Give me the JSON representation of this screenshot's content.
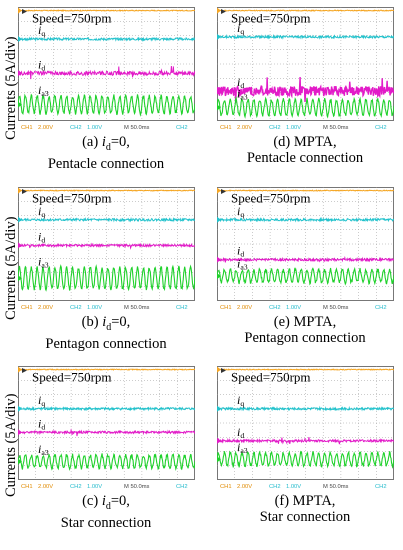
{
  "y_axis_label": "Currents (5A/div)",
  "colors": {
    "speed": "#F5A623",
    "iq": "#22C2CC",
    "id": "#E21BC8",
    "ia": "#1FD12B",
    "grid": "#9A9A9A",
    "status_left": "#E08A00",
    "status_mid": "#22BBCC",
    "status_right": "#22BBCC"
  },
  "panels": [
    {
      "id": "a",
      "speed_label": "Speed=750rpm",
      "iq_label": "iq",
      "id_label": "id",
      "ia_label": "ia3",
      "status": {
        "ch1": "CH1",
        "v1": "2.00V",
        "ch2": "CH2",
        "v2": "1.00V",
        "time": "M 50.0ms",
        "right": "CH2"
      },
      "caption_prefix": "(a) ",
      "caption_var": "i",
      "caption_sub": "d",
      "caption_rest": "=0,",
      "caption_line2": "Pentacle connection"
    },
    {
      "id": "d",
      "speed_label": "Speed=750rpm",
      "iq_label": "iq",
      "id_label": "id",
      "ia_label": "ia3",
      "status": {
        "ch1": "CH1",
        "v1": "2.00V",
        "ch2": "CH2",
        "v2": "1.00V",
        "time": "M 50.0ms",
        "right": "CH2"
      },
      "caption_line1": "(d) MPTA,",
      "caption_line2": "Pentacle connection"
    },
    {
      "id": "b",
      "speed_label": "Speed=750rpm",
      "iq_label": "iq",
      "id_label": "id",
      "ia_label": "ia3",
      "status": {
        "ch1": "CH1",
        "v1": "2.00V",
        "ch2": "CH2",
        "v2": "1.00V",
        "time": "M 50.0ms",
        "right": "CH2"
      },
      "caption_prefix": "(b) ",
      "caption_var": "i",
      "caption_sub": "d",
      "caption_rest": "=0,",
      "caption_line2": "Pentagon connection"
    },
    {
      "id": "e",
      "speed_label": "Speed=750rpm",
      "iq_label": "iq",
      "id_label": "id",
      "ia_label": "ia3",
      "status": {
        "ch1": "CH1",
        "v1": "2.00V",
        "ch2": "CH2",
        "v2": "1.00V",
        "time": "M 50.0ms",
        "right": "CH2"
      },
      "caption_line1": "(e) MPTA,",
      "caption_line2": "Pentagon connection"
    },
    {
      "id": "c",
      "speed_label": "Speed=750rpm",
      "iq_label": "iq",
      "id_label": "id",
      "ia_label": "ia3",
      "status": {
        "ch1": "CH1",
        "v1": "2.00V",
        "ch2": "CH2",
        "v2": "1.00V",
        "time": "M 50.0ms",
        "right": "CH2"
      },
      "caption_prefix": "(c) ",
      "caption_var": "i",
      "caption_sub": "d",
      "caption_rest": "=0,",
      "caption_line2": "Star connection"
    },
    {
      "id": "f",
      "speed_label": "Speed=750rpm",
      "iq_label": "iq",
      "id_label": "id",
      "ia_label": "ia3",
      "status": {
        "ch1": "CH1",
        "v1": "2.00V",
        "ch2": "CH2",
        "v2": "1.00V",
        "time": "M 50.0ms",
        "right": "CH2"
      },
      "caption_line1": "(f) MPTA,",
      "caption_line2": "Star connection"
    }
  ],
  "chart_data": [
    {
      "type": "line",
      "panel": "a",
      "grid": true,
      "x_div": 10,
      "y_div": 8,
      "time_per_div": "50.0ms",
      "series": [
        {
          "name": "Speed",
          "level_div": 7.75,
          "noise_div": 0.03
        },
        {
          "name": "iq",
          "level_div": 5.75,
          "noise_div": 0.08
        },
        {
          "name": "id",
          "level_div": 3.35,
          "noise_div": 0.14
        },
        {
          "name": "ia3",
          "level_div": 1.15,
          "amplitude_div": 0.6,
          "cycles": 30
        }
      ]
    },
    {
      "type": "line",
      "panel": "d",
      "grid": true,
      "x_div": 10,
      "y_div": 8,
      "time_per_div": "50.0ms",
      "series": [
        {
          "name": "Speed",
          "level_div": 7.75,
          "noise_div": 0.03
        },
        {
          "name": "iq",
          "level_div": 5.9,
          "noise_div": 0.08
        },
        {
          "name": "id",
          "level_div": 2.1,
          "noise_div": 0.35
        },
        {
          "name": "ia3",
          "level_div": 0.95,
          "amplitude_div": 0.55,
          "cycles": 30
        }
      ]
    },
    {
      "type": "line",
      "panel": "b",
      "grid": true,
      "x_div": 10,
      "y_div": 8,
      "time_per_div": "50.0ms",
      "series": [
        {
          "name": "Speed",
          "level_div": 7.75,
          "noise_div": 0.03
        },
        {
          "name": "iq",
          "level_div": 5.7,
          "noise_div": 0.08
        },
        {
          "name": "id",
          "level_div": 3.9,
          "noise_div": 0.08
        },
        {
          "name": "ia3",
          "level_div": 1.6,
          "amplitude_div": 0.75,
          "cycles": 30
        }
      ]
    },
    {
      "type": "line",
      "panel": "e",
      "grid": true,
      "x_div": 10,
      "y_div": 8,
      "time_per_div": "50.0ms",
      "series": [
        {
          "name": "Speed",
          "level_div": 7.75,
          "noise_div": 0.03
        },
        {
          "name": "iq",
          "level_div": 5.7,
          "noise_div": 0.08
        },
        {
          "name": "id",
          "level_div": 2.9,
          "noise_div": 0.08
        },
        {
          "name": "ia3",
          "level_div": 1.75,
          "amplitude_div": 0.45,
          "cycles": 30
        }
      ]
    },
    {
      "type": "line",
      "panel": "c",
      "grid": true,
      "x_div": 10,
      "y_div": 8,
      "time_per_div": "50.0ms",
      "series": [
        {
          "name": "Speed",
          "level_div": 7.75,
          "noise_div": 0.03
        },
        {
          "name": "iq",
          "level_div": 5.0,
          "noise_div": 0.08
        },
        {
          "name": "id",
          "level_div": 3.35,
          "noise_div": 0.08
        },
        {
          "name": "ia3",
          "level_div": 1.3,
          "amplitude_div": 0.45,
          "cycles": 30
        }
      ]
    },
    {
      "type": "line",
      "panel": "f",
      "grid": true,
      "x_div": 10,
      "y_div": 8,
      "time_per_div": "50.0ms",
      "series": [
        {
          "name": "Speed",
          "level_div": 7.75,
          "noise_div": 0.03
        },
        {
          "name": "iq",
          "level_div": 5.0,
          "noise_div": 0.08
        },
        {
          "name": "id",
          "level_div": 2.75,
          "noise_div": 0.08
        },
        {
          "name": "ia3",
          "level_div": 1.45,
          "amplitude_div": 0.45,
          "cycles": 30
        }
      ]
    }
  ]
}
